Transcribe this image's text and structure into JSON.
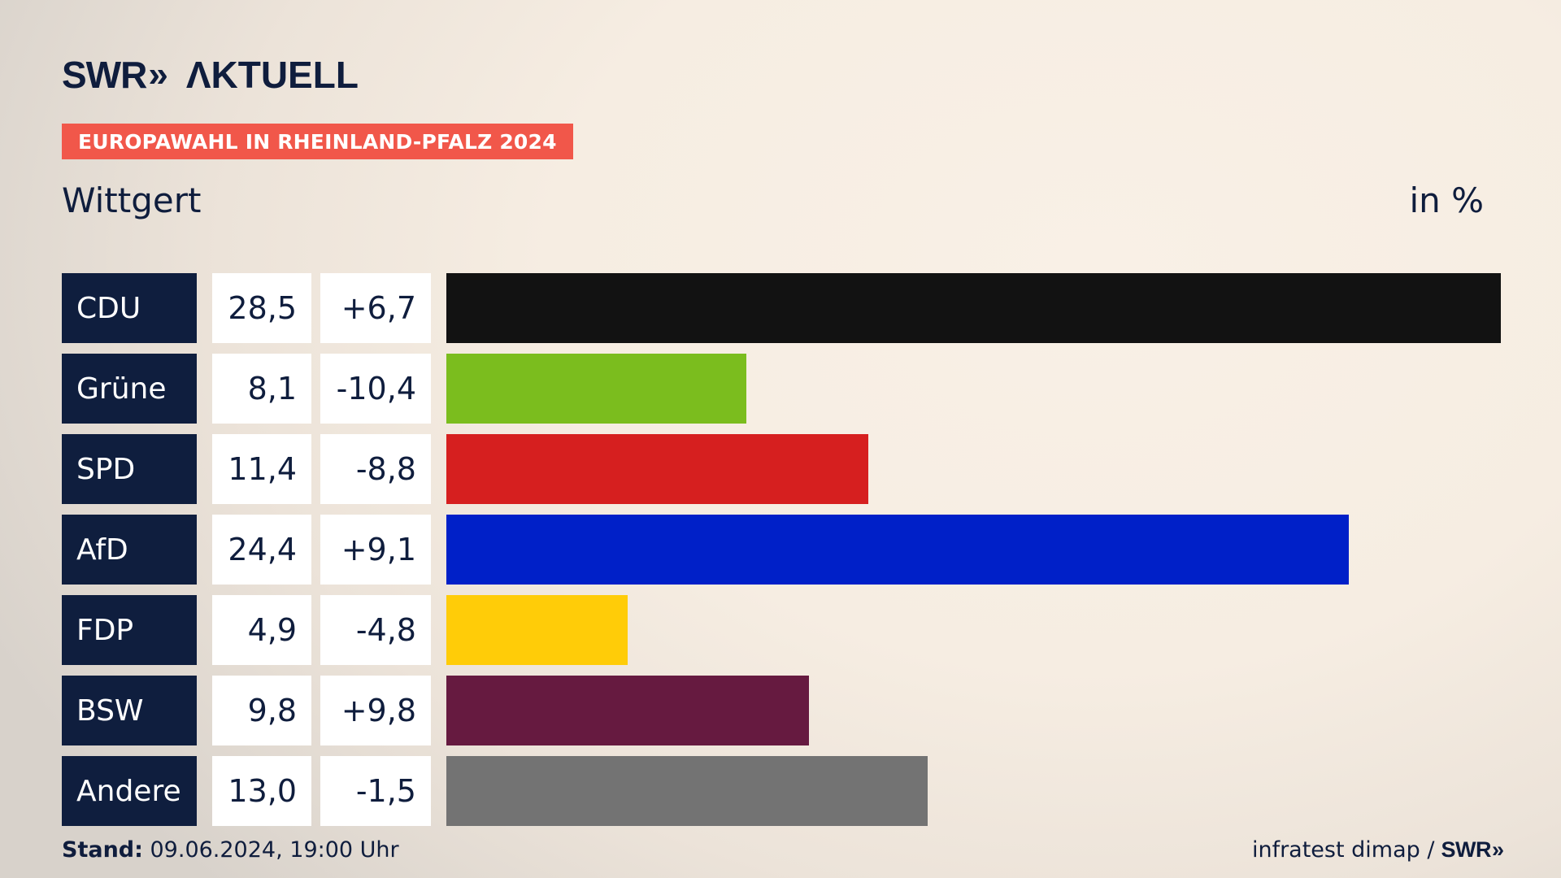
{
  "header": {
    "logo_mark": "SWR",
    "logo_chevrons": "»",
    "logo_brand": "ΛKTUELL",
    "tag": "EUROPAWAHL IN RHEINLAND-PFALZ 2024",
    "subtitle": "Wittgert",
    "unit": "in %"
  },
  "colors": {
    "navy": "#0f1e3e",
    "tag_red": "#f1574a"
  },
  "chart_data": {
    "type": "bar",
    "orientation": "horizontal",
    "categories": [
      "CDU",
      "Grüne",
      "SPD",
      "AfD",
      "FDP",
      "BSW",
      "Andere"
    ],
    "values": [
      28.5,
      8.1,
      11.4,
      24.4,
      4.9,
      9.8,
      13.0
    ],
    "value_labels": [
      "28,5",
      "8,1",
      "11,4",
      "24,4",
      "4,9",
      "9,8",
      "13,0"
    ],
    "change_labels": [
      "+6,7",
      "-10,4",
      "-8,8",
      "+9,1",
      "-4,8",
      "+9,8",
      "-1,5"
    ],
    "changes": [
      6.7,
      -10.4,
      -8.8,
      9.1,
      -4.8,
      9.8,
      -1.5
    ],
    "bar_colors": [
      "#121212",
      "#7bbd1e",
      "#d61f1f",
      "#0020c8",
      "#ffcc08",
      "#661a40",
      "#737373"
    ],
    "xlim": [
      0,
      28.5
    ]
  },
  "footer": {
    "stand_label": "Stand:",
    "stand_value": " 09.06.2024, 19:00 Uhr",
    "source": "infratest dimap /",
    "source_logo": "SWR",
    "source_chevrons": "»"
  }
}
